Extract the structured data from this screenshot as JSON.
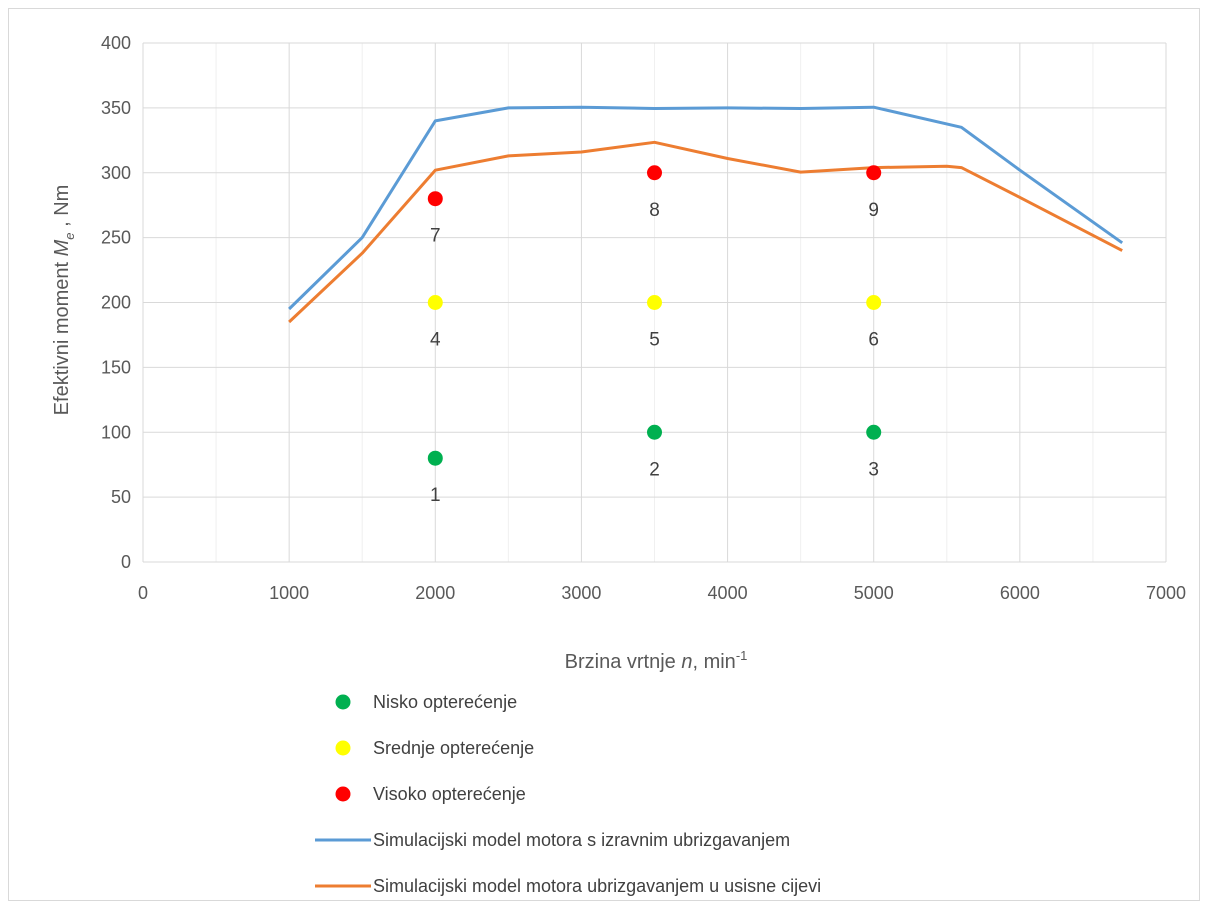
{
  "chart_data": {
    "type": "line",
    "xlabel_parts": {
      "prefix": "Brzina vrtnje ",
      "var": "n",
      "mid": ", min",
      "sup": "-1"
    },
    "ylabel_parts": {
      "prefix": "Efektivni moment ",
      "var": "M",
      "sub": "e",
      "suffix": " , Nm"
    },
    "xlim": [
      0,
      7000
    ],
    "ylim": [
      0,
      400
    ],
    "x_ticks": [
      0,
      1000,
      2000,
      3000,
      4000,
      5000,
      6000,
      7000
    ],
    "y_ticks": [
      0,
      50,
      100,
      150,
      200,
      250,
      300,
      350,
      400
    ],
    "grid": true,
    "legend_position": "bottom",
    "series": [
      {
        "name": "Simulacijski model motora s izravnim ubrizgavanjem",
        "kind": "line",
        "color": "#5b9bd5",
        "points": [
          [
            1000,
            195
          ],
          [
            1500,
            250
          ],
          [
            2000,
            340
          ],
          [
            2500,
            350
          ],
          [
            3000,
            350.5
          ],
          [
            3500,
            349.5
          ],
          [
            4000,
            350
          ],
          [
            4500,
            349.5
          ],
          [
            5000,
            350.5
          ],
          [
            5600,
            335
          ],
          [
            6000,
            302
          ],
          [
            6700,
            246
          ]
        ]
      },
      {
        "name": "Simulacijski model motora ubrizgavanjem u usisne cijevi",
        "kind": "line",
        "color": "#ed7d31",
        "points": [
          [
            1000,
            185
          ],
          [
            1500,
            238
          ],
          [
            2000,
            302
          ],
          [
            2500,
            313
          ],
          [
            3000,
            316
          ],
          [
            3500,
            323.5
          ],
          [
            4000,
            311
          ],
          [
            4500,
            300.5
          ],
          [
            5000,
            304
          ],
          [
            5500,
            305
          ],
          [
            5600,
            304
          ],
          [
            6000,
            281
          ],
          [
            6700,
            240
          ]
        ]
      },
      {
        "name": "Nisko opterećenje",
        "kind": "scatter",
        "color": "#00b050",
        "points": [
          [
            2000,
            80,
            "1"
          ],
          [
            3500,
            100,
            "2"
          ],
          [
            5000,
            100,
            "3"
          ]
        ]
      },
      {
        "name": "Srednje opterećenje",
        "kind": "scatter",
        "color": "#ffff00",
        "points": [
          [
            2000,
            200,
            "4"
          ],
          [
            3500,
            200,
            "5"
          ],
          [
            5000,
            200,
            "6"
          ]
        ]
      },
      {
        "name": "Visoko opterećenje",
        "kind": "scatter",
        "color": "#ff0000",
        "points": [
          [
            2000,
            280,
            "7"
          ],
          [
            3500,
            300,
            "8"
          ],
          [
            5000,
            300,
            "9"
          ]
        ]
      }
    ],
    "legend_order": [
      2,
      3,
      4,
      0,
      1
    ]
  }
}
